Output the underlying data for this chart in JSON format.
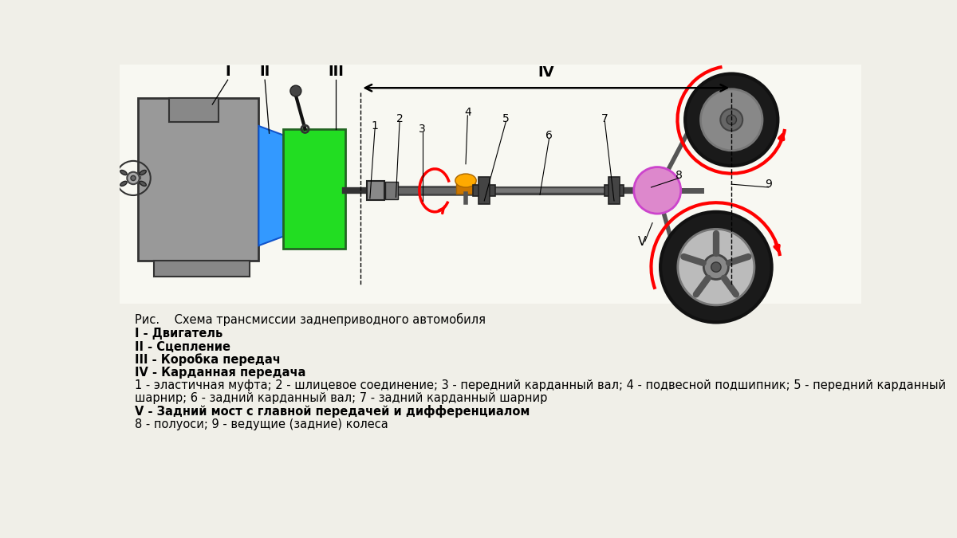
{
  "bg_color": "#f0efe8",
  "title_line": "Рис.    Схема трансмиссии заднеприводного автомобиля",
  "legend_lines": [
    {
      "text": "I - Двигатель",
      "bold": true
    },
    {
      "text": "II - Сцепление",
      "bold": true
    },
    {
      "text": "III - Коробка передач",
      "bold": true
    },
    {
      "text": "IV - Карданная передача",
      "bold": true
    },
    {
      "text": "1 - эластичная муфта; 2 - шлицевое соединение; 3 - передний карданный вал; 4 - подвесной подшипник; 5 - передний карданный",
      "bold": false
    },
    {
      "text": "шарнир; 6 - задний карданный вал; 7 - задний карданный шарнир",
      "bold": false
    },
    {
      "text": "V - Задний мост с главной передачей и дифференциалом",
      "bold": true
    },
    {
      "text": "8 - полуоси; 9 - ведущие (задние) колеса",
      "bold": false
    }
  ]
}
